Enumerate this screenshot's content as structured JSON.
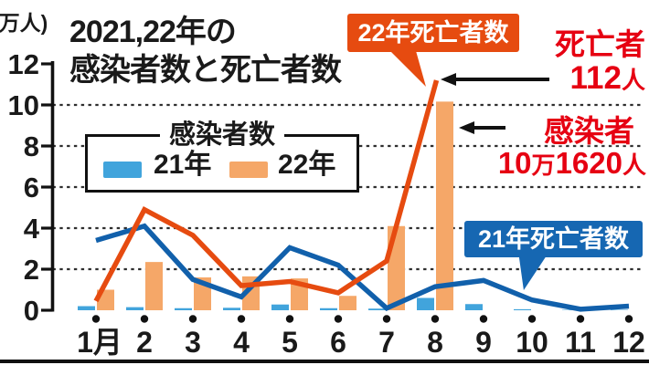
{
  "title": {
    "line1": "2021,22年の",
    "line2": "感染者数と死亡者数"
  },
  "y_axis": {
    "unit_label": "(万人)"
  },
  "legend": {
    "title": "感染者数",
    "items": [
      {
        "label": "21年",
        "color": "#41a4dc"
      },
      {
        "label": "22年",
        "color": "#f5a768"
      }
    ]
  },
  "callouts": {
    "deaths_2022_label": "22年死亡者数",
    "deaths_2021_label": "21年死亡者数"
  },
  "annotations": {
    "deaths": {
      "label": "死亡者",
      "value": "112",
      "unit": "人"
    },
    "infected": {
      "label": "感染者",
      "value_head": "10",
      "value_man": "万",
      "value_tail": "1620",
      "unit": "人"
    }
  },
  "colors": {
    "bar_2021": "#41a4dc",
    "bar_2022": "#f5a768",
    "line_2021": "#1160ab",
    "line_2022": "#e64b10",
    "callout_2021_bg": "#1667b2",
    "callout_2022_bg": "#e64b10",
    "red_text": "#e60012",
    "ink": "#1a1a1a"
  },
  "chart_data": {
    "type": "bar",
    "title": "2021,22年の感染者数と死亡者数",
    "xlabel": "月 (1月〜12月)",
    "ylabel": "(万人)",
    "ylim": [
      0,
      12
    ],
    "yticks": [
      0,
      2,
      4,
      6,
      8,
      10,
      12
    ],
    "grid": "dotted horizontal lines at 2,4,6,8,10",
    "legend_position": "upper-left box",
    "categories": [
      "1月",
      "2",
      "3",
      "4",
      "5",
      "6",
      "7",
      "8",
      "9",
      "10",
      "11",
      "12"
    ],
    "series": [
      {
        "name": "21年 感染者数",
        "type": "bar",
        "color": "#41a4dc",
        "values": [
          0.2,
          0.15,
          0.1,
          0.12,
          0.28,
          0.1,
          0.08,
          0.6,
          0.3,
          0.05,
          0.02,
          0.02
        ]
      },
      {
        "name": "22年 感染者数",
        "type": "bar",
        "color": "#f5a768",
        "values": [
          1.0,
          2.35,
          1.6,
          1.65,
          1.55,
          0.7,
          4.1,
          10.162,
          null,
          null,
          null,
          null
        ]
      },
      {
        "name": "21年 死亡者数",
        "type": "line",
        "color": "#1160ab",
        "values": [
          3.4,
          4.1,
          1.5,
          0.65,
          3.05,
          2.2,
          0.1,
          1.15,
          1.45,
          0.5,
          0.05,
          0.2
        ]
      },
      {
        "name": "22年 死亡者数",
        "type": "line",
        "color": "#e64b10",
        "values": [
          0.45,
          4.9,
          3.65,
          1.2,
          1.4,
          0.85,
          2.4,
          11.2,
          null,
          null,
          null,
          null
        ]
      }
    ],
    "callout_values": {
      "deaths_2022_peak": "死亡者112人 (8月, 11.2目盛)",
      "infected_2022_peak": "感染者10万1620人 (8月, 10.16万)"
    },
    "note": "bars in 万人 (10k people); death lines drawn on same scale where 1 unit = 10 deaths (112人 peak = 11.2)"
  }
}
